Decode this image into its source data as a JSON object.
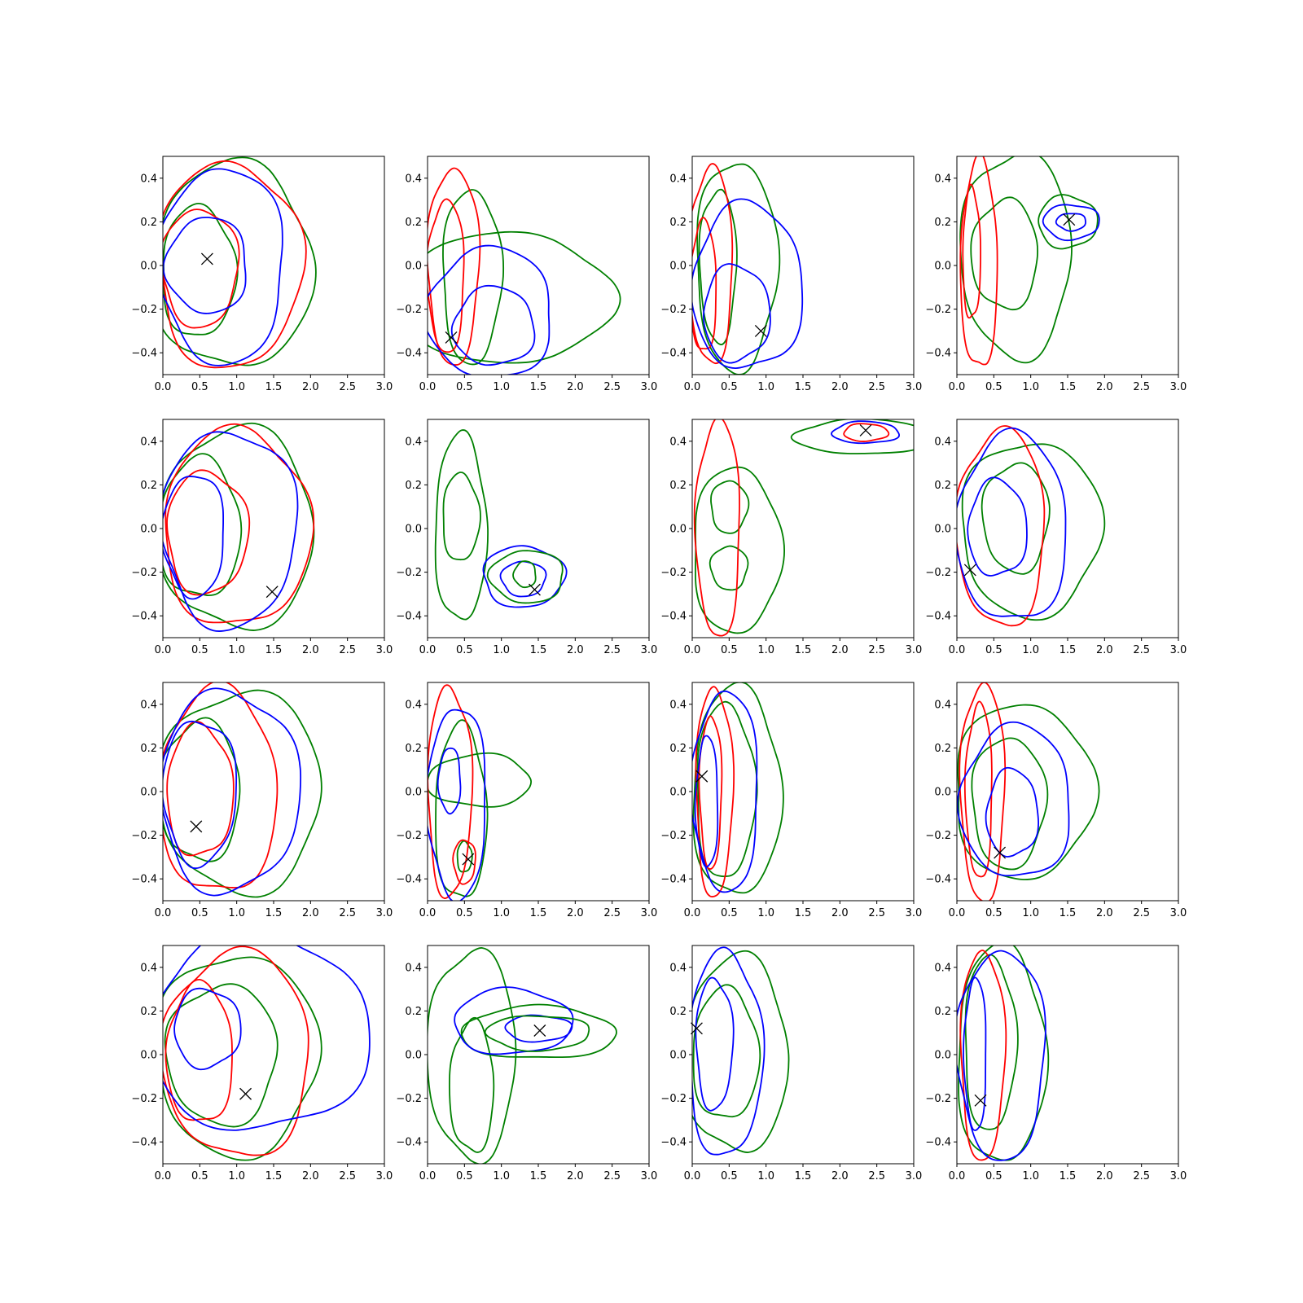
{
  "chart_data": {
    "type": "contour",
    "grid": {
      "rows": 4,
      "cols": 4
    },
    "xlim": [
      0.0,
      3.0
    ],
    "ylim": [
      -0.5,
      0.5
    ],
    "xticks": [
      "0.0",
      "0.5",
      "1.0",
      "1.5",
      "2.0",
      "2.5",
      "3.0"
    ],
    "yticks": [
      "−0.4",
      "−0.2",
      "0.0",
      "0.2",
      "0.4"
    ],
    "xtick_values": [
      0.0,
      0.5,
      1.0,
      1.5,
      2.0,
      2.5,
      3.0
    ],
    "ytick_values": [
      -0.4,
      -0.2,
      0.0,
      0.2,
      0.4
    ],
    "grid_lines": false,
    "colors": {
      "blue": "#0000ff",
      "green": "#008000",
      "red": "#ff0000",
      "marker": "#000000"
    },
    "panels": [
      {
        "marker": [
          0.6,
          0.03
        ],
        "blobs": [
          {
            "color": "green",
            "cx": 0.95,
            "cy": 0.0,
            "rx": 1.08,
            "ry": 0.47
          },
          {
            "color": "green",
            "cx": 0.48,
            "cy": -0.03,
            "rx": 0.5,
            "ry": 0.3
          },
          {
            "color": "red",
            "cx": 0.9,
            "cy": 0.0,
            "rx": 0.98,
            "ry": 0.47
          },
          {
            "color": "red",
            "cx": 0.5,
            "cy": -0.01,
            "rx": 0.52,
            "ry": 0.27
          },
          {
            "color": "blue",
            "cx": 0.8,
            "cy": 0.0,
            "rx": 0.85,
            "ry": 0.45
          },
          {
            "color": "blue",
            "cx": 0.6,
            "cy": 0.0,
            "rx": 0.55,
            "ry": 0.22
          }
        ]
      },
      {
        "marker": [
          0.32,
          -0.33
        ],
        "blobs": [
          {
            "color": "green",
            "cx": 1.1,
            "cy": -0.15,
            "rx": 1.4,
            "ry": 0.3
          },
          {
            "color": "green",
            "cx": 0.6,
            "cy": -0.05,
            "rx": 0.4,
            "ry": 0.4
          },
          {
            "color": "red",
            "cx": 0.35,
            "cy": 0.0,
            "rx": 0.35,
            "ry": 0.45
          },
          {
            "color": "red",
            "cx": 0.25,
            "cy": -0.05,
            "rx": 0.25,
            "ry": 0.35
          },
          {
            "color": "blue",
            "cx": 0.85,
            "cy": -0.22,
            "rx": 0.85,
            "ry": 0.3
          },
          {
            "color": "blue",
            "cx": 0.9,
            "cy": -0.28,
            "rx": 0.55,
            "ry": 0.18
          }
        ]
      },
      {
        "marker": [
          0.93,
          -0.3
        ],
        "blobs": [
          {
            "color": "green",
            "cx": 0.6,
            "cy": 0.0,
            "rx": 0.55,
            "ry": 0.48
          },
          {
            "color": "green",
            "cx": 0.35,
            "cy": 0.0,
            "rx": 0.25,
            "ry": 0.35
          },
          {
            "color": "red",
            "cx": 0.25,
            "cy": 0.0,
            "rx": 0.3,
            "ry": 0.45
          },
          {
            "color": "red",
            "cx": 0.15,
            "cy": -0.1,
            "rx": 0.18,
            "ry": 0.3
          },
          {
            "color": "blue",
            "cx": 0.75,
            "cy": -0.1,
            "rx": 0.75,
            "ry": 0.38
          },
          {
            "color": "blue",
            "cx": 0.6,
            "cy": -0.22,
            "rx": 0.45,
            "ry": 0.22
          }
        ]
      },
      {
        "marker": [
          1.52,
          0.21
        ],
        "blobs": [
          {
            "color": "green",
            "cx": 0.8,
            "cy": 0.05,
            "rx": 0.75,
            "ry": 0.47
          },
          {
            "color": "green",
            "cx": 0.65,
            "cy": 0.05,
            "rx": 0.45,
            "ry": 0.25
          },
          {
            "color": "red",
            "cx": 0.3,
            "cy": 0.0,
            "rx": 0.25,
            "ry": 0.48
          },
          {
            "color": "red",
            "cx": 0.2,
            "cy": 0.05,
            "rx": 0.12,
            "ry": 0.3
          },
          {
            "color": "green",
            "cx": 1.5,
            "cy": 0.2,
            "rx": 0.4,
            "ry": 0.12
          },
          {
            "color": "blue",
            "cx": 1.55,
            "cy": 0.2,
            "rx": 0.38,
            "ry": 0.08
          },
          {
            "color": "blue",
            "cx": 1.55,
            "cy": 0.2,
            "rx": 0.2,
            "ry": 0.04
          }
        ]
      },
      {
        "marker": [
          1.48,
          -0.29
        ],
        "blobs": [
          {
            "color": "green",
            "cx": 1.0,
            "cy": 0.0,
            "rx": 1.05,
            "ry": 0.46
          },
          {
            "color": "green",
            "cx": 0.5,
            "cy": 0.0,
            "rx": 0.55,
            "ry": 0.32
          },
          {
            "color": "red",
            "cx": 1.0,
            "cy": 0.0,
            "rx": 1.0,
            "ry": 0.45
          },
          {
            "color": "red",
            "cx": 0.6,
            "cy": -0.02,
            "rx": 0.55,
            "ry": 0.28
          },
          {
            "color": "blue",
            "cx": 0.9,
            "cy": 0.0,
            "rx": 0.92,
            "ry": 0.45
          },
          {
            "color": "blue",
            "cx": 0.42,
            "cy": -0.03,
            "rx": 0.42,
            "ry": 0.28
          }
        ]
      },
      {
        "marker": [
          1.45,
          -0.28
        ],
        "blobs": [
          {
            "color": "green",
            "cx": 0.45,
            "cy": 0.0,
            "rx": 0.35,
            "ry": 0.43
          },
          {
            "color": "green",
            "cx": 0.45,
            "cy": 0.05,
            "rx": 0.25,
            "ry": 0.2
          },
          {
            "color": "blue",
            "cx": 1.3,
            "cy": -0.22,
            "rx": 0.55,
            "ry": 0.14
          },
          {
            "color": "blue",
            "cx": 1.3,
            "cy": -0.23,
            "rx": 0.3,
            "ry": 0.08
          },
          {
            "color": "green",
            "cx": 1.35,
            "cy": -0.22,
            "rx": 0.5,
            "ry": 0.12
          },
          {
            "color": "green",
            "cx": 1.32,
            "cy": -0.21,
            "rx": 0.15,
            "ry": 0.06
          }
        ]
      },
      {
        "marker": [
          2.35,
          0.45
        ],
        "blobs": [
          {
            "color": "green",
            "cx": 0.6,
            "cy": -0.1,
            "rx": 0.6,
            "ry": 0.38
          },
          {
            "color": "green",
            "cx": 0.5,
            "cy": 0.1,
            "rx": 0.25,
            "ry": 0.12
          },
          {
            "color": "green",
            "cx": 0.5,
            "cy": -0.18,
            "rx": 0.25,
            "ry": 0.1
          },
          {
            "color": "red",
            "cx": 0.35,
            "cy": 0.0,
            "rx": 0.3,
            "ry": 0.5
          },
          {
            "color": "green",
            "cx": 2.3,
            "cy": 0.42,
            "rx": 0.9,
            "ry": 0.08
          },
          {
            "color": "blue",
            "cx": 2.35,
            "cy": 0.44,
            "rx": 0.45,
            "ry": 0.05
          },
          {
            "color": "red",
            "cx": 2.35,
            "cy": 0.44,
            "rx": 0.3,
            "ry": 0.04
          }
        ]
      },
      {
        "marker": [
          0.18,
          -0.19
        ],
        "blobs": [
          {
            "color": "green",
            "cx": 1.0,
            "cy": 0.0,
            "rx": 0.95,
            "ry": 0.4
          },
          {
            "color": "green",
            "cx": 0.8,
            "cy": 0.05,
            "rx": 0.45,
            "ry": 0.25
          },
          {
            "color": "red",
            "cx": 0.6,
            "cy": 0.0,
            "rx": 0.6,
            "ry": 0.45
          },
          {
            "color": "blue",
            "cx": 0.75,
            "cy": 0.0,
            "rx": 0.75,
            "ry": 0.43
          },
          {
            "color": "blue",
            "cx": 0.55,
            "cy": 0.0,
            "rx": 0.4,
            "ry": 0.22
          }
        ]
      },
      {
        "marker": [
          0.45,
          -0.16
        ],
        "blobs": [
          {
            "color": "green",
            "cx": 1.05,
            "cy": 0.0,
            "rx": 1.1,
            "ry": 0.46
          },
          {
            "color": "green",
            "cx": 0.5,
            "cy": 0.0,
            "rx": 0.55,
            "ry": 0.32
          },
          {
            "color": "red",
            "cx": 0.75,
            "cy": 0.0,
            "rx": 0.8,
            "ry": 0.47
          },
          {
            "color": "red",
            "cx": 0.5,
            "cy": 0.0,
            "rx": 0.45,
            "ry": 0.3
          },
          {
            "color": "blue",
            "cx": 0.9,
            "cy": 0.0,
            "rx": 0.95,
            "ry": 0.46
          },
          {
            "color": "blue",
            "cx": 0.5,
            "cy": 0.0,
            "rx": 0.5,
            "ry": 0.33
          }
        ]
      },
      {
        "marker": [
          0.55,
          -0.31
        ],
        "blobs": [
          {
            "color": "green",
            "cx": 0.7,
            "cy": 0.05,
            "rx": 0.7,
            "ry": 0.12
          },
          {
            "color": "green",
            "cx": 0.45,
            "cy": -0.1,
            "rx": 0.35,
            "ry": 0.4
          },
          {
            "color": "green",
            "cx": 0.5,
            "cy": -0.3,
            "rx": 0.1,
            "ry": 0.07
          },
          {
            "color": "red",
            "cx": 0.3,
            "cy": 0.0,
            "rx": 0.3,
            "ry": 0.48
          },
          {
            "color": "red",
            "cx": 0.5,
            "cy": -0.32,
            "rx": 0.15,
            "ry": 0.1
          },
          {
            "color": "blue",
            "cx": 0.4,
            "cy": -0.05,
            "rx": 0.4,
            "ry": 0.44
          },
          {
            "color": "blue",
            "cx": 0.3,
            "cy": 0.05,
            "rx": 0.15,
            "ry": 0.15
          }
        ]
      },
      {
        "marker": [
          0.13,
          0.07
        ],
        "blobs": [
          {
            "color": "green",
            "cx": 0.6,
            "cy": 0.0,
            "rx": 0.6,
            "ry": 0.48
          },
          {
            "color": "green",
            "cx": 0.45,
            "cy": 0.0,
            "rx": 0.4,
            "ry": 0.4
          },
          {
            "color": "red",
            "cx": 0.3,
            "cy": 0.0,
            "rx": 0.25,
            "ry": 0.48
          },
          {
            "color": "red",
            "cx": 0.25,
            "cy": 0.0,
            "rx": 0.15,
            "ry": 0.35
          },
          {
            "color": "blue",
            "cx": 0.45,
            "cy": 0.0,
            "rx": 0.45,
            "ry": 0.46
          },
          {
            "color": "blue",
            "cx": 0.2,
            "cy": -0.05,
            "rx": 0.15,
            "ry": 0.3
          }
        ]
      },
      {
        "marker": [
          0.58,
          -0.28
        ],
        "blobs": [
          {
            "color": "green",
            "cx": 0.9,
            "cy": 0.0,
            "rx": 0.95,
            "ry": 0.4
          },
          {
            "color": "green",
            "cx": 0.7,
            "cy": -0.05,
            "rx": 0.5,
            "ry": 0.3
          },
          {
            "color": "red",
            "cx": 0.35,
            "cy": 0.0,
            "rx": 0.3,
            "ry": 0.5
          },
          {
            "color": "red",
            "cx": 0.3,
            "cy": 0.0,
            "rx": 0.18,
            "ry": 0.4
          },
          {
            "color": "blue",
            "cx": 0.8,
            "cy": -0.05,
            "rx": 0.75,
            "ry": 0.35
          },
          {
            "color": "blue",
            "cx": 0.75,
            "cy": -0.1,
            "rx": 0.35,
            "ry": 0.2
          }
        ]
      },
      {
        "marker": [
          1.12,
          -0.18
        ],
        "blobs": [
          {
            "color": "green",
            "cx": 1.0,
            "cy": 0.0,
            "rx": 1.1,
            "ry": 0.46
          },
          {
            "color": "green",
            "cx": 0.8,
            "cy": 0.0,
            "rx": 0.75,
            "ry": 0.32
          },
          {
            "color": "red",
            "cx": 1.0,
            "cy": 0.0,
            "rx": 1.0,
            "ry": 0.47
          },
          {
            "color": "red",
            "cx": 0.5,
            "cy": 0.0,
            "rx": 0.45,
            "ry": 0.32
          },
          {
            "color": "blue",
            "cx": 1.3,
            "cy": 0.1,
            "rx": 1.5,
            "ry": 0.45
          },
          {
            "color": "blue",
            "cx": 0.6,
            "cy": 0.12,
            "rx": 0.45,
            "ry": 0.18
          }
        ]
      },
      {
        "marker": [
          1.52,
          0.11
        ],
        "blobs": [
          {
            "color": "green",
            "cx": 0.6,
            "cy": 0.0,
            "rx": 0.6,
            "ry": 0.48
          },
          {
            "color": "green",
            "cx": 0.6,
            "cy": -0.15,
            "rx": 0.3,
            "ry": 0.3
          },
          {
            "color": "green",
            "cx": 1.5,
            "cy": 0.1,
            "rx": 1.05,
            "ry": 0.12
          },
          {
            "color": "blue",
            "cx": 1.15,
            "cy": 0.15,
            "rx": 0.8,
            "ry": 0.15
          },
          {
            "color": "blue",
            "cx": 1.5,
            "cy": 0.12,
            "rx": 0.45,
            "ry": 0.06
          },
          {
            "color": "green",
            "cx": 1.5,
            "cy": 0.1,
            "rx": 0.7,
            "ry": 0.08
          }
        ]
      },
      {
        "marker": [
          0.06,
          0.12
        ],
        "blobs": [
          {
            "color": "green",
            "cx": 0.6,
            "cy": 0.0,
            "rx": 0.7,
            "ry": 0.45
          },
          {
            "color": "green",
            "cx": 0.45,
            "cy": 0.0,
            "rx": 0.45,
            "ry": 0.3
          },
          {
            "color": "blue",
            "cx": 0.45,
            "cy": 0.0,
            "rx": 0.5,
            "ry": 0.47
          },
          {
            "color": "blue",
            "cx": 0.3,
            "cy": 0.05,
            "rx": 0.25,
            "ry": 0.3
          }
        ]
      },
      {
        "marker": [
          0.32,
          -0.21
        ],
        "blobs": [
          {
            "color": "green",
            "cx": 0.6,
            "cy": 0.0,
            "rx": 0.6,
            "ry": 0.5
          },
          {
            "color": "green",
            "cx": 0.45,
            "cy": 0.05,
            "rx": 0.35,
            "ry": 0.4
          },
          {
            "color": "red",
            "cx": 0.35,
            "cy": 0.0,
            "rx": 0.3,
            "ry": 0.48
          },
          {
            "color": "blue",
            "cx": 0.6,
            "cy": 0.0,
            "rx": 0.6,
            "ry": 0.48
          },
          {
            "color": "blue",
            "cx": 0.25,
            "cy": 0.0,
            "rx": 0.15,
            "ry": 0.35
          }
        ]
      }
    ]
  }
}
